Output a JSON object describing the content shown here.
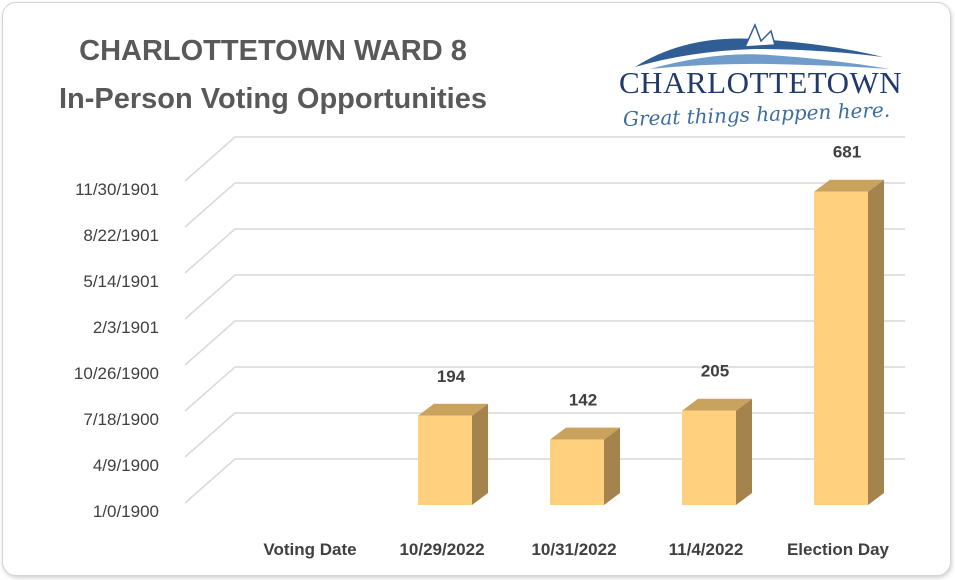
{
  "chart_data": {
    "type": "bar",
    "title": "CHARLOTTETOWN WARD 8",
    "subtitle": "In-Person Voting Opportunities",
    "categories": [
      "Voting Date",
      "10/29/2022",
      "10/31/2022",
      "11/4/2022",
      "Election Day"
    ],
    "values": [
      null,
      194,
      142,
      205,
      681
    ],
    "data_labels": [
      "",
      "194",
      "142",
      "205",
      "681"
    ],
    "y_tick_labels": [
      "1/0/1900",
      "4/9/1900",
      "7/18/1900",
      "10/26/1900",
      "2/3/1901",
      "5/14/1901",
      "8/22/1901",
      "11/30/1901"
    ],
    "ylim": [
      0,
      700
    ],
    "y_step": 100,
    "xlabel": "",
    "ylabel": "",
    "grid": true,
    "style": "3d-column",
    "colors": {
      "bar_front": "#ffd17f",
      "bar_side": "#a4844c",
      "bar_top": "#c9a25e",
      "grid": "#d9d9d9",
      "text": "#404040",
      "title": "#595959"
    }
  },
  "logo": {
    "name": "CHARLOTTETOWN",
    "tagline": "Great things happen here."
  }
}
